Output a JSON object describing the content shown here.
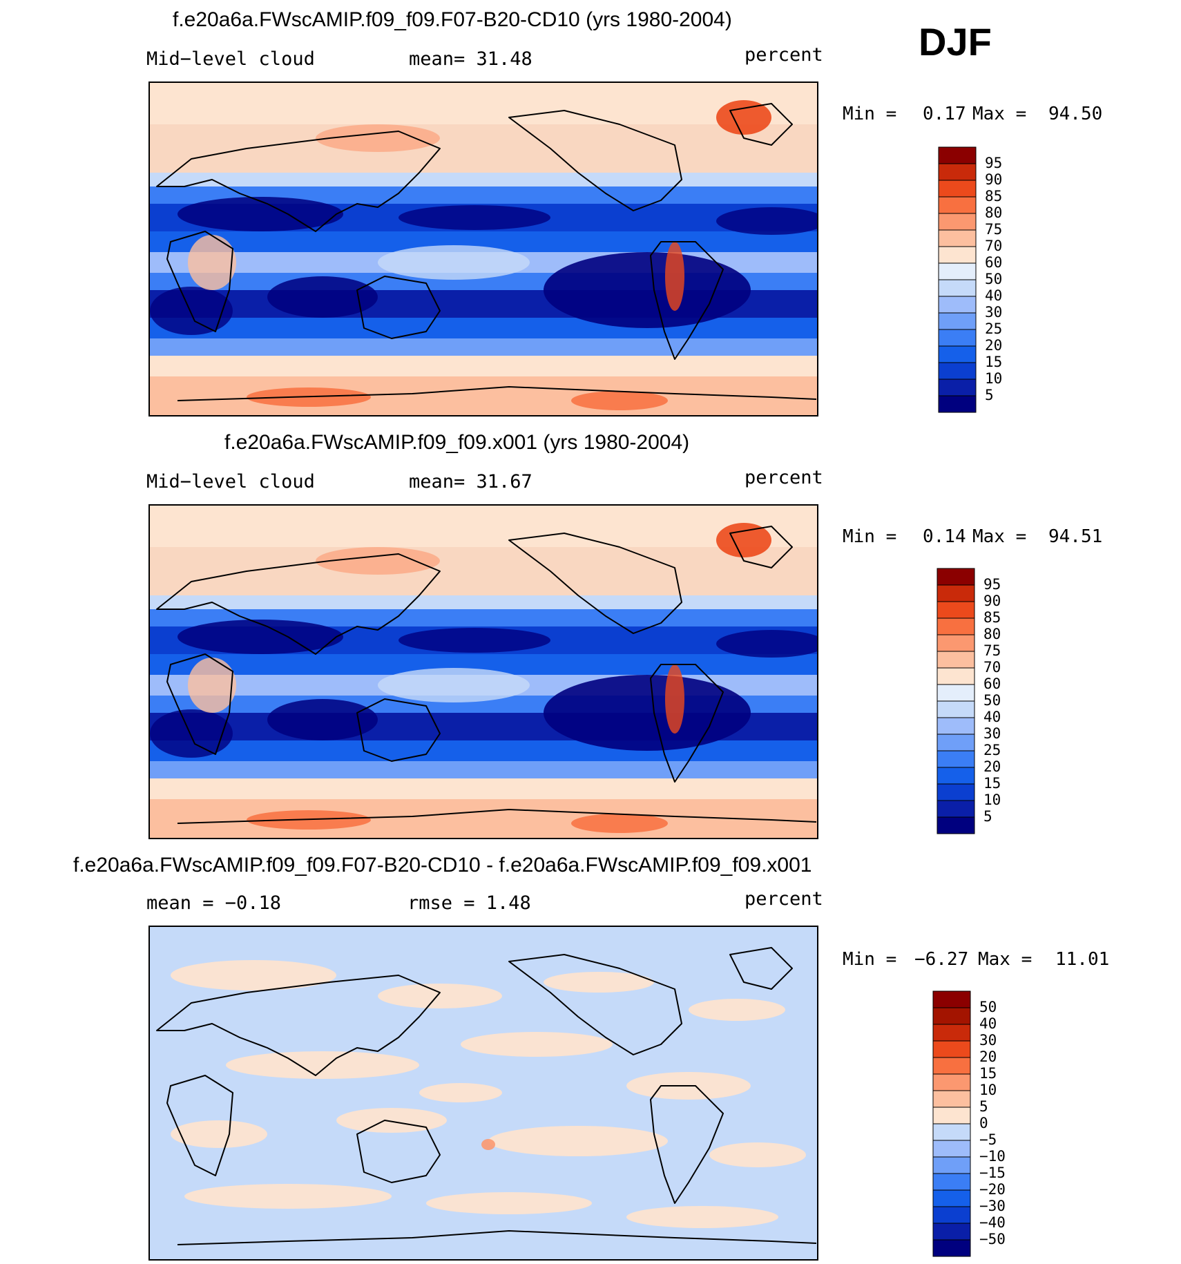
{
  "season": "DJF",
  "panels": [
    {
      "title": "f.e20a6a.FWscAMIP.f09_f09.F07-B20-CD10 (yrs 1980-2004)",
      "left_label": "Mid−level cloud",
      "center_label": "mean=   31.48",
      "right_label": "percent",
      "min_label": "Min =",
      "min_value": "0.17",
      "max_label": "Max =",
      "max_value": "94.50",
      "variant": "field"
    },
    {
      "title": "f.e20a6a.FWscAMIP.f09_f09.x001 (yrs 1980-2004)",
      "left_label": "Mid−level cloud",
      "center_label": "mean=   31.67",
      "right_label": "percent",
      "min_label": "Min =",
      "min_value": "0.14",
      "max_label": "Max =",
      "max_value": "94.51",
      "variant": "field"
    },
    {
      "title": "f.e20a6a.FWscAMIP.f09_f09.F07-B20-CD10 - f.e20a6a.FWscAMIP.f09_f09.x001",
      "left_label": "mean =   −0.18",
      "center_label": "rmse =    1.48",
      "right_label": "percent",
      "min_label": "Min =",
      "min_value": "−6.27",
      "max_label": "Max =",
      "max_value": "11.01",
      "variant": "diff"
    }
  ],
  "chart_data": [
    {
      "type": "heatmap",
      "title": "f.e20a6a.FWscAMIP.f09_f09.F07-B20-CD10 (yrs 1980-2004)",
      "variable": "Mid-level cloud",
      "units": "percent",
      "mean": 31.48,
      "min": 0.17,
      "max": 94.5,
      "colorbar_levels": [
        5,
        10,
        15,
        20,
        25,
        30,
        40,
        50,
        60,
        70,
        75,
        80,
        85,
        90,
        95
      ],
      "colorbar_colors": [
        "#00007f",
        "#0a1fa8",
        "#0b3fd0",
        "#1560ea",
        "#3b7ef5",
        "#6f9ff8",
        "#9ebcfa",
        "#c5daf9",
        "#e4eefb",
        "#fde4d0",
        "#fcbf9f",
        "#fb9870",
        "#f87040",
        "#ec4a1c",
        "#c92a0a",
        "#8b0000"
      ]
    },
    {
      "type": "heatmap",
      "title": "f.e20a6a.FWscAMIP.f09_f09.x001 (yrs 1980-2004)",
      "variable": "Mid-level cloud",
      "units": "percent",
      "mean": 31.67,
      "min": 0.14,
      "max": 94.51,
      "colorbar_levels": [
        5,
        10,
        15,
        20,
        25,
        30,
        40,
        50,
        60,
        70,
        75,
        80,
        85,
        90,
        95
      ],
      "colorbar_colors": [
        "#00007f",
        "#0a1fa8",
        "#0b3fd0",
        "#1560ea",
        "#3b7ef5",
        "#6f9ff8",
        "#9ebcfa",
        "#c5daf9",
        "#e4eefb",
        "#fde4d0",
        "#fcbf9f",
        "#fb9870",
        "#f87040",
        "#ec4a1c",
        "#c92a0a",
        "#8b0000"
      ]
    },
    {
      "type": "heatmap",
      "title": "f.e20a6a.FWscAMIP.f09_f09.F07-B20-CD10 - f.e20a6a.FWscAMIP.f09_f09.x001",
      "units": "percent",
      "mean": -0.18,
      "rmse": 1.48,
      "min": -6.27,
      "max": 11.01,
      "colorbar_levels": [
        -50,
        -40,
        -30,
        -20,
        -15,
        -10,
        -5,
        0,
        5,
        10,
        15,
        20,
        30,
        40,
        50
      ],
      "colorbar_level_labels": [
        "−50",
        "−40",
        "−30",
        "−20",
        "−15",
        "−10",
        "−5",
        "0",
        "5",
        "10",
        "15",
        "20",
        "30",
        "40",
        "50"
      ],
      "colorbar_colors": [
        "#00007f",
        "#0a1fa8",
        "#0b3fd0",
        "#1560ea",
        "#3b7ef5",
        "#6f9ff8",
        "#9ebcfa",
        "#c5daf9",
        "#fde4d0",
        "#fcbf9f",
        "#fb9870",
        "#f87040",
        "#ec4a1c",
        "#c92a0a",
        "#a31400",
        "#8b0000"
      ]
    }
  ]
}
